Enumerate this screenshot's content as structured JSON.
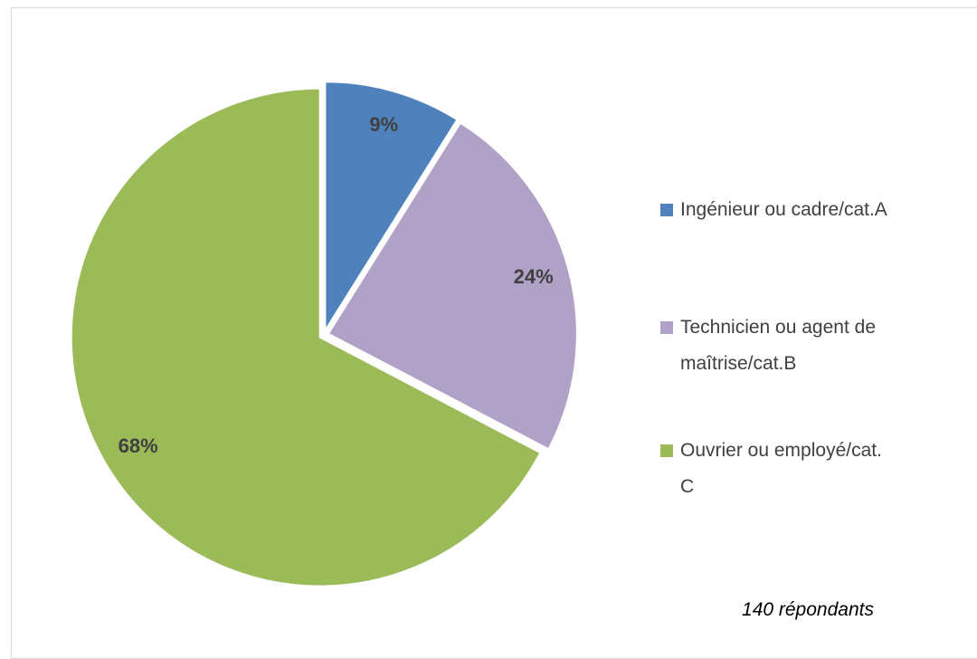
{
  "chart_data": {
    "type": "pie",
    "categories": [
      "Ingénieur ou cadre/cat.A",
      "Technicien ou agent de maîtrise/cat.B",
      "Ouvrier ou employé/cat. C"
    ],
    "values": [
      9,
      24,
      68
    ],
    "value_labels": [
      "9%",
      "24%",
      "68%"
    ],
    "colors": [
      "#4f81bd",
      "#b2a1c7",
      "#9bbb59"
    ],
    "legend": "right",
    "annotation": "140 répondants"
  }
}
